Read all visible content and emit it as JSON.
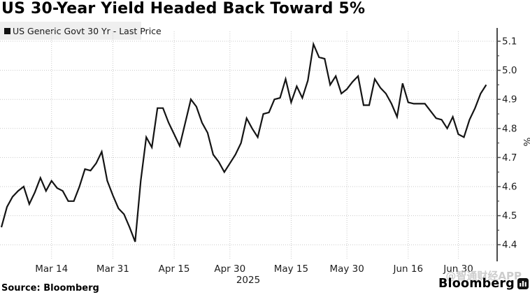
{
  "header": {
    "title": "US 30-Year Yield Headed Back Toward 5%"
  },
  "legend": {
    "series_label": "US Generic Govt 30 Yr - Last Price"
  },
  "footer": {
    "source": "Source: Bloomberg",
    "brand": "Bloomberg",
    "watermark": "@智通财经APP"
  },
  "chart_data": {
    "type": "line",
    "title": "US 30-Year Yield Headed Back Toward 5%",
    "series_name": "US Generic Govt 30 Yr - Last Price",
    "unit": "%",
    "year_label": "2025",
    "ylabel": "%",
    "ylim": [
      4.37,
      5.14
    ],
    "y_ticks": [
      4.4,
      4.5,
      4.6,
      4.7,
      4.8,
      4.9,
      5.0,
      5.1
    ],
    "y_minor_ticks": [
      4.45,
      4.55,
      4.65,
      4.75,
      4.85,
      4.95,
      5.05
    ],
    "grid": true,
    "legend_position": "top-left",
    "x_tick_labels": [
      "Mar 14",
      "Mar 31",
      "Apr 15",
      "Apr 30",
      "May 15",
      "May 30",
      "Jun 16",
      "Jun 30"
    ],
    "x_tick_indices": [
      9,
      20,
      31,
      41,
      52,
      62,
      73,
      82
    ],
    "x": [
      "Mar 3",
      "Mar 4",
      "Mar 5",
      "Mar 6",
      "Mar 7",
      "Mar 10",
      "Mar 11",
      "Mar 12",
      "Mar 13",
      "Mar 14",
      "Mar 17",
      "Mar 18",
      "Mar 19",
      "Mar 20",
      "Mar 21",
      "Mar 24",
      "Mar 25",
      "Mar 26",
      "Mar 27",
      "Mar 28",
      "Mar 31",
      "Apr 1",
      "Apr 2",
      "Apr 3",
      "Apr 4",
      "Apr 7",
      "Apr 8",
      "Apr 9",
      "Apr 10",
      "Apr 11",
      "Apr 14",
      "Apr 15",
      "Apr 16",
      "Apr 17",
      "Apr 21",
      "Apr 22",
      "Apr 23",
      "Apr 24",
      "Apr 25",
      "Apr 28",
      "Apr 29",
      "Apr 30",
      "May 1",
      "May 2",
      "May 5",
      "May 6",
      "May 7",
      "May 8",
      "May 9",
      "May 12",
      "May 13",
      "May 14",
      "May 15",
      "May 16",
      "May 19",
      "May 20",
      "May 21",
      "May 22",
      "May 23",
      "May 27",
      "May 28",
      "May 29",
      "May 30",
      "Jun 2",
      "Jun 3",
      "Jun 4",
      "Jun 5",
      "Jun 6",
      "Jun 9",
      "Jun 10",
      "Jun 11",
      "Jun 12",
      "Jun 13",
      "Jun 16",
      "Jun 17",
      "Jun 18",
      "Jun 20",
      "Jun 23",
      "Jun 24",
      "Jun 25",
      "Jun 26",
      "Jun 27",
      "Jun 30",
      "Jul 1",
      "Jul 2",
      "Jul 3",
      "Jul 7",
      "Jul 8"
    ],
    "values": [
      4.46,
      4.53,
      4.565,
      4.585,
      4.6,
      4.54,
      4.58,
      4.63,
      4.585,
      4.62,
      4.595,
      4.585,
      4.55,
      4.55,
      4.6,
      4.66,
      4.655,
      4.68,
      4.72,
      4.62,
      4.57,
      4.525,
      4.505,
      4.46,
      4.41,
      4.62,
      4.77,
      4.735,
      4.87,
      4.87,
      4.82,
      4.78,
      4.74,
      4.82,
      4.9,
      4.875,
      4.82,
      4.785,
      4.71,
      4.685,
      4.65,
      4.68,
      4.71,
      4.75,
      4.835,
      4.8,
      4.77,
      4.85,
      4.855,
      4.9,
      4.905,
      4.97,
      4.89,
      4.945,
      4.905,
      4.965,
      5.09,
      5.045,
      5.04,
      4.95,
      4.98,
      4.92,
      4.935,
      4.96,
      4.98,
      4.88,
      4.88,
      4.97,
      4.94,
      4.92,
      4.885,
      4.84,
      4.955,
      4.89,
      4.885,
      4.885,
      4.885,
      4.86,
      4.835,
      4.83,
      4.8,
      4.84,
      4.78,
      4.77,
      4.83,
      4.87,
      4.92,
      4.95
    ],
    "colors": {
      "line": "#141414",
      "grid": "#c9c9c9",
      "axis": "#4b4b4b",
      "tick_label": "#1d1d1d",
      "legend_bg": "#efefef",
      "watermark": "#cdcdcd"
    }
  }
}
